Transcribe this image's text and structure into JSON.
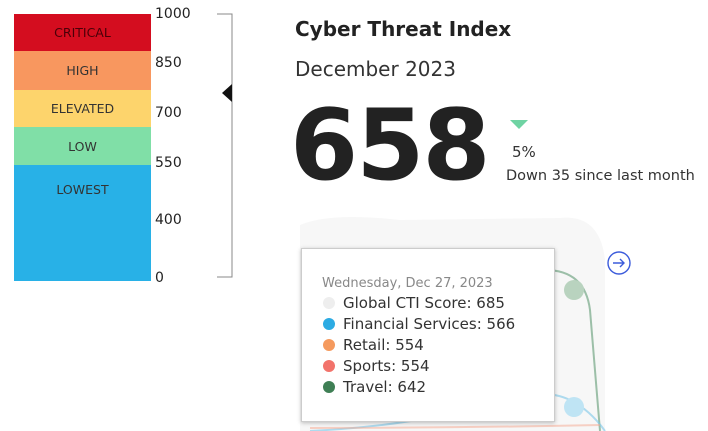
{
  "levels": [
    {
      "label": "CRITICAL",
      "color": "#d40d1f"
    },
    {
      "label": "HIGH",
      "color": "#f8975f"
    },
    {
      "label": "ELEVATED",
      "color": "#fdd46c"
    },
    {
      "label": "LOW",
      "color": "#80dfa7"
    },
    {
      "label": "LOWEST",
      "color": "#28b1e7"
    }
  ],
  "scale": [
    "1000",
    "850",
    "700",
    "550",
    "400",
    "0"
  ],
  "title": "Cyber Threat Index",
  "subtitle": "December 2023",
  "score": "658",
  "change": "5%",
  "change_text": "Down 35 since last month",
  "tooltip": {
    "date": "Wednesday, Dec 27, 2023",
    "items": [
      {
        "label": "Global CTI Score: 685",
        "color": "#eeeeee"
      },
      {
        "label": "Financial Services: 566",
        "color": "#2cabe3"
      },
      {
        "label": "Retail: 554",
        "color": "#f59a5e"
      },
      {
        "label": "Sports: 554",
        "color": "#f2736b"
      },
      {
        "label": "Travel: 642",
        "color": "#3f7f55"
      }
    ]
  }
}
